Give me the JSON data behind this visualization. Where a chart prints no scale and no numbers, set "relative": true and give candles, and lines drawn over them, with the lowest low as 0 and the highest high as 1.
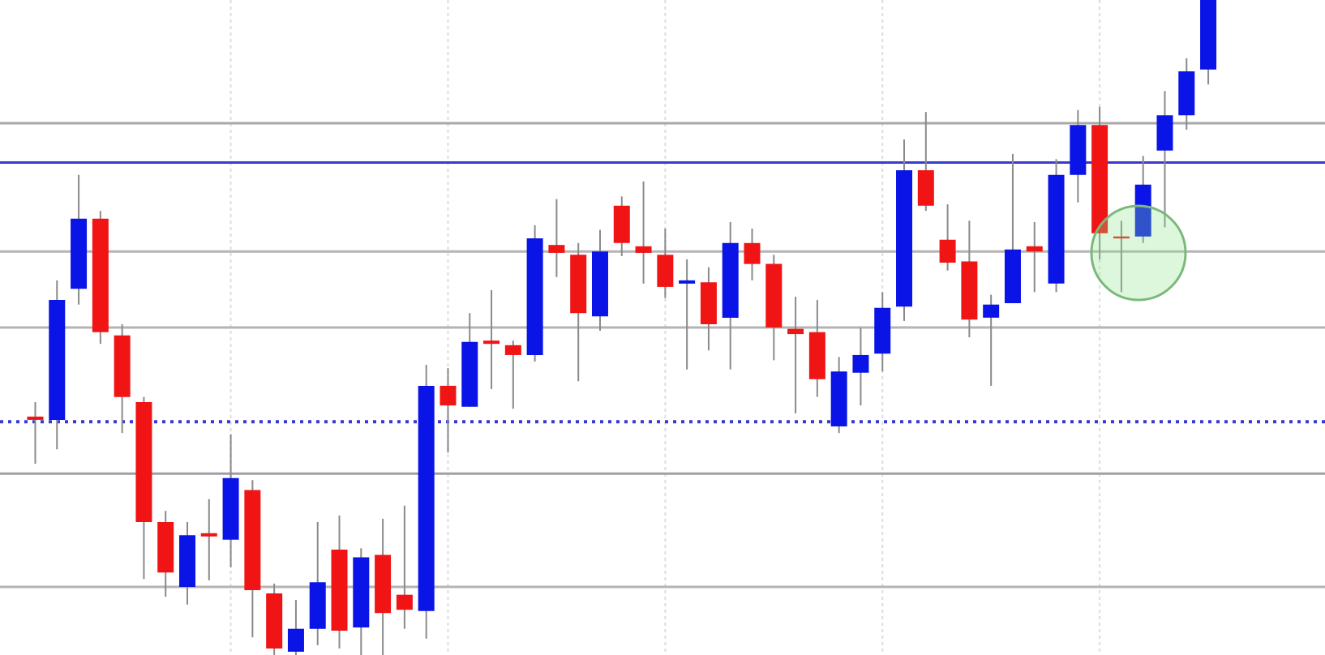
{
  "chart_data": {
    "type": "candlestick",
    "relative": true,
    "grid": "x",
    "categories": [
      null,
      null,
      null,
      null,
      null,
      null,
      null,
      null,
      null,
      null,
      null,
      null,
      null,
      null,
      null,
      null,
      null,
      null,
      null,
      null,
      null,
      null,
      null,
      null,
      null,
      null,
      null,
      null,
      null,
      null,
      null,
      null,
      null,
      null,
      null,
      null,
      null,
      null,
      null,
      null,
      null,
      null,
      null,
      null,
      null,
      null,
      null,
      null,
      null,
      null,
      null,
      null,
      null,
      null,
      null
    ],
    "ohlc": [
      [
        0.364,
        0.386,
        0.292,
        0.359
      ],
      [
        0.359,
        0.572,
        0.314,
        0.542
      ],
      [
        0.559,
        0.733,
        0.535,
        0.666
      ],
      [
        0.666,
        0.678,
        0.475,
        0.493
      ],
      [
        0.488,
        0.505,
        0.339,
        0.394
      ],
      [
        0.386,
        0.394,
        0.116,
        0.203
      ],
      [
        0.203,
        0.22,
        0.089,
        0.126
      ],
      [
        0.104,
        0.203,
        0.077,
        0.183
      ],
      [
        0.186,
        0.238,
        0.114,
        0.181
      ],
      [
        0.176,
        0.337,
        0.134,
        0.27
      ],
      [
        0.252,
        0.267,
        0.027,
        0.099
      ],
      [
        0.094,
        0.109,
        0,
        0.01
      ],
      [
        0.005,
        0.084,
        0,
        0.04
      ],
      [
        0.04,
        0.203,
        0.015,
        0.111
      ],
      [
        0.161,
        0.213,
        0.01,
        0.037
      ],
      [
        0.042,
        0.163,
        0,
        0.149
      ],
      [
        0.153,
        0.208,
        0,
        0.064
      ],
      [
        0.092,
        0.228,
        0.04,
        0.069
      ],
      [
        0.067,
        0.443,
        0.025,
        0.411
      ],
      [
        0.411,
        0.438,
        0.309,
        0.381
      ],
      [
        0.379,
        0.522,
        0.379,
        0.478
      ],
      [
        0.48,
        0.557,
        0.406,
        0.475
      ],
      [
        0.473,
        0.48,
        0.376,
        0.458
      ],
      [
        0.458,
        0.656,
        0.448,
        0.636
      ],
      [
        0.626,
        0.696,
        0.577,
        0.614
      ],
      [
        0.611,
        0.629,
        0.418,
        0.522
      ],
      [
        0.517,
        0.649,
        0.495,
        0.616
      ],
      [
        0.686,
        0.7,
        0.609,
        0.629
      ],
      [
        0.624,
        0.723,
        0.567,
        0.614
      ],
      [
        0.611,
        0.651,
        0.545,
        0.562
      ],
      [
        0.567,
        0.604,
        0.436,
        0.572
      ],
      [
        0.569,
        0.592,
        0.465,
        0.505
      ],
      [
        0.515,
        0.661,
        0.436,
        0.629
      ],
      [
        0.629,
        0.651,
        0.572,
        0.597
      ],
      [
        0.597,
        0.611,
        0.45,
        0.5
      ],
      [
        0.498,
        0.547,
        0.369,
        0.49
      ],
      [
        0.493,
        0.542,
        0.394,
        0.421
      ],
      [
        0.349,
        0.455,
        0.339,
        0.433
      ],
      [
        0.431,
        0.5,
        0.381,
        0.458
      ],
      [
        0.46,
        0.554,
        0.433,
        0.53
      ],
      [
        0.532,
        0.787,
        0.51,
        0.74
      ],
      [
        0.74,
        0.829,
        0.678,
        0.686
      ],
      [
        0.634,
        0.688,
        0.587,
        0.599
      ],
      [
        0.601,
        0.663,
        0.485,
        0.512
      ],
      [
        0.515,
        0.55,
        0.411,
        0.535
      ],
      [
        0.537,
        0.765,
        0.537,
        0.619
      ],
      [
        0.624,
        0.661,
        0.554,
        0.616
      ],
      [
        0.567,
        0.757,
        0.554,
        0.733
      ],
      [
        0.733,
        0.832,
        0.691,
        0.809
      ],
      [
        0.809,
        0.837,
        0.604,
        0.644
      ],
      [
        0.639,
        0.663,
        0.554,
        0.636
      ],
      [
        0.639,
        0.762,
        0.629,
        0.718
      ],
      [
        0.77,
        0.861,
        0.653,
        0.824
      ],
      [
        0.824,
        0.911,
        0.802,
        0.891
      ],
      [
        0.894,
        1,
        0.871,
        1
      ]
    ],
    "colors": [
      "#f01414",
      "#0a14e6",
      "#0a14e6",
      "#f01414",
      "#f01414",
      "#f01414",
      "#f01414",
      "#0a14e6",
      "#f01414",
      "#0a14e6",
      "#f01414",
      "#f01414",
      "#0a14e6",
      "#0a14e6",
      "#f01414",
      "#0a14e6",
      "#f01414",
      "#f01414",
      "#0a14e6",
      "#f01414",
      "#0a14e6",
      "#f01414",
      "#f01414",
      "#0a14e6",
      "#f01414",
      "#f01414",
      "#0a14e6",
      "#f01414",
      "#f01414",
      "#f01414",
      "#0a14e6",
      "#f01414",
      "#0a14e6",
      "#f01414",
      "#f01414",
      "#f01414",
      "#f01414",
      "#0a14e6",
      "#0a14e6",
      "#0a14e6",
      "#0a14e6",
      "#f01414",
      "#f01414",
      "#f01414",
      "#0a14e6",
      "#0a14e6",
      "#f01414",
      "#0a14e6",
      "#0a14e6",
      "#f01414",
      "#f01414",
      "#0a14e6",
      "#0a14e6",
      "#0a14e6",
      "#0a14e6"
    ],
    "ref_lines": [
      {
        "axis": "y",
        "value": 0.812,
        "color": "#a8a8a8"
      },
      {
        "axis": "y",
        "value": 0.752,
        "color": "#3a3ad0"
      },
      {
        "axis": "y",
        "value": 0.616,
        "color": "#b4b4b4"
      },
      {
        "axis": "y",
        "value": 0.5,
        "color": "#b4b4b4"
      },
      {
        "axis": "y",
        "value": 0.356,
        "color": "#3a3ad0",
        "line_style": "dotted"
      },
      {
        "axis": "y",
        "value": 0.277,
        "color": "#a0a0a0"
      },
      {
        "axis": "y",
        "value": 0.104,
        "color": "#b4b4b4"
      }
    ]
  }
}
